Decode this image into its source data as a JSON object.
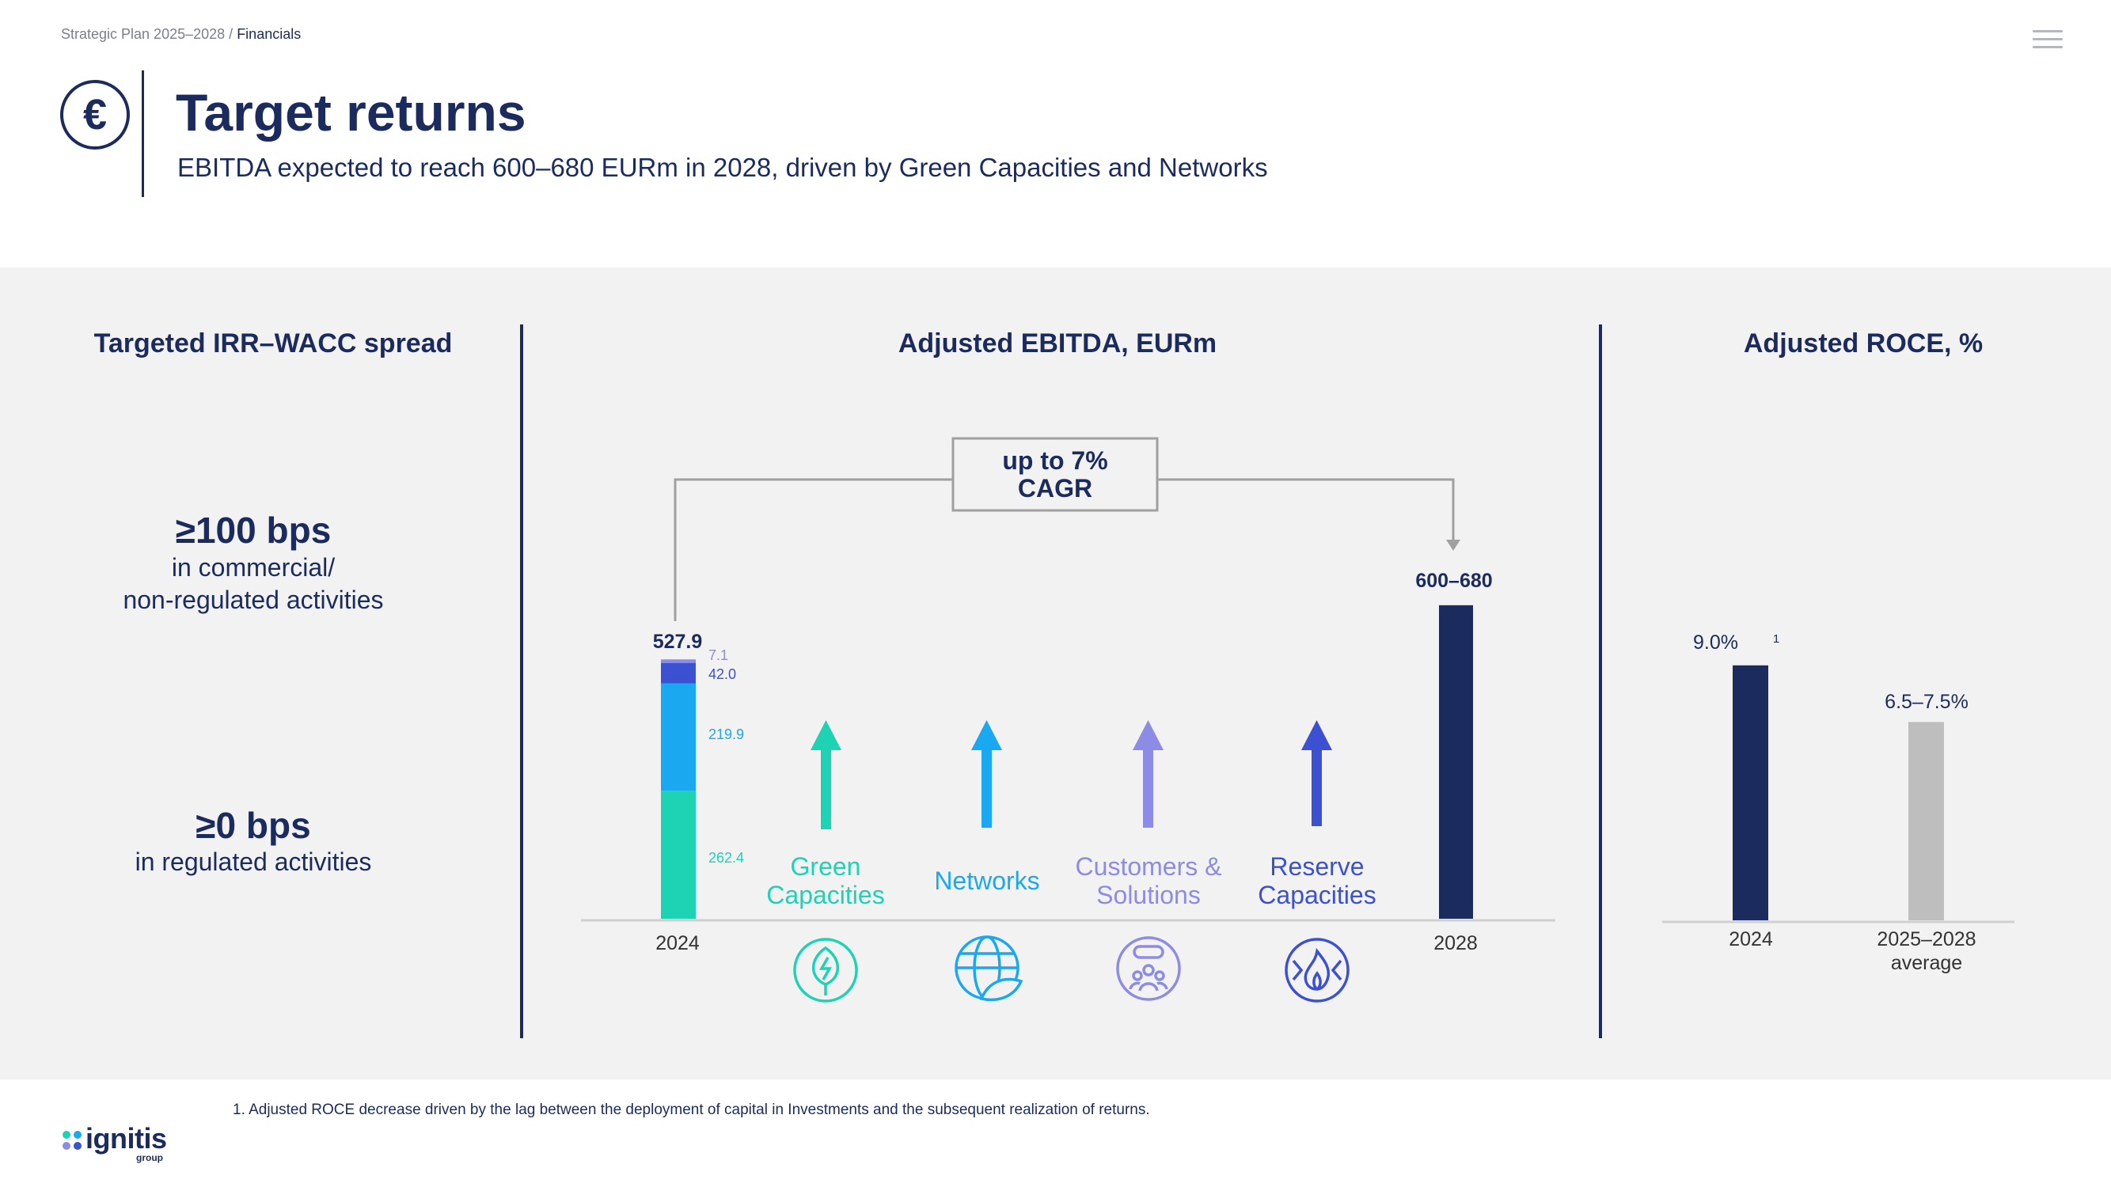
{
  "breadcrumb": {
    "section": "Strategic Plan 2025–2028",
    "separator": " / ",
    "current": "Financials"
  },
  "header": {
    "icon": "euro-icon",
    "title": "Target returns",
    "subtitle": "EBITDA expected to reach 600–680 EURm in 2028, driven by Green Capacities and Networks"
  },
  "irr_panel": {
    "heading": "Targeted IRR–WACC spread",
    "commercial": {
      "value": "≥100 bps",
      "line1": "in commercial/",
      "line2": "non-regulated activities"
    },
    "regulated": {
      "value": "≥0 bps",
      "line1": "in regulated activities"
    }
  },
  "ebitda_panel": {
    "heading": "Adjusted EBITDA, EURm"
  },
  "roce_panel": {
    "heading": "Adjusted ROCE, %"
  },
  "footnote": "1. Adjusted ROCE decrease driven by the lag between the deployment of capital in Investments and the subsequent realization of returns.",
  "logo": {
    "word": "ignitis",
    "sub": "group"
  },
  "colors": {
    "navy": "#1b2b5e",
    "green": "#1ed2b4",
    "networks": "#1aa8f0",
    "customers": "#8c8ce6",
    "reserve": "#3c50d2",
    "grey": "#bebebe"
  },
  "chart_data": [
    {
      "type": "bar",
      "title": "Adjusted EBITDA, EURm",
      "categories": [
        "2024",
        "2028"
      ],
      "total_2024_label": "527.9",
      "stack_2024": [
        {
          "name": "Green Capacities",
          "value": 262.4,
          "label": "262.4",
          "color": "#1ed2b4"
        },
        {
          "name": "Networks",
          "value": 219.9,
          "label": "219.9",
          "color": "#1aa8f0"
        },
        {
          "name": "Reserve Capacities",
          "value": 42.0,
          "label": "42.0",
          "color": "#3c50d2"
        },
        {
          "name": "Customers & Solutions",
          "value": 7.1,
          "label": "7.1",
          "color": "#8c8ce6"
        }
      ],
      "target_2028": {
        "low": 600,
        "high": 680,
        "label": "600–680"
      },
      "cagr_label_line1": "up to 7%",
      "cagr_label_line2": "CAGR",
      "drivers": [
        {
          "line1": "Green",
          "line2": "Capacities",
          "icon": "sprout-bolt-icon",
          "color": "#1ed2b4"
        },
        {
          "line1": "Networks",
          "line2": "",
          "icon": "globe-leaf-icon",
          "color": "#1aa8f0"
        },
        {
          "line1": "Customers &",
          "line2": "Solutions",
          "icon": "people-icon",
          "color": "#8c8ce6"
        },
        {
          "line1": "Reserve",
          "line2": "Capacities",
          "icon": "flame-cycle-icon",
          "color": "#3c50d2"
        }
      ]
    },
    {
      "type": "bar",
      "title": "Adjusted ROCE, %",
      "categories": [
        "2024",
        "2025–2028"
      ],
      "category_sub": [
        "",
        "average"
      ],
      "values": [
        9.0,
        7.0
      ],
      "range_2025_2028": [
        6.5,
        7.5
      ],
      "labels": [
        "9.0%",
        "6.5–7.5%"
      ],
      "footnote_marker": "1",
      "colors": [
        "#1b2b5e",
        "#bebebe"
      ]
    }
  ]
}
